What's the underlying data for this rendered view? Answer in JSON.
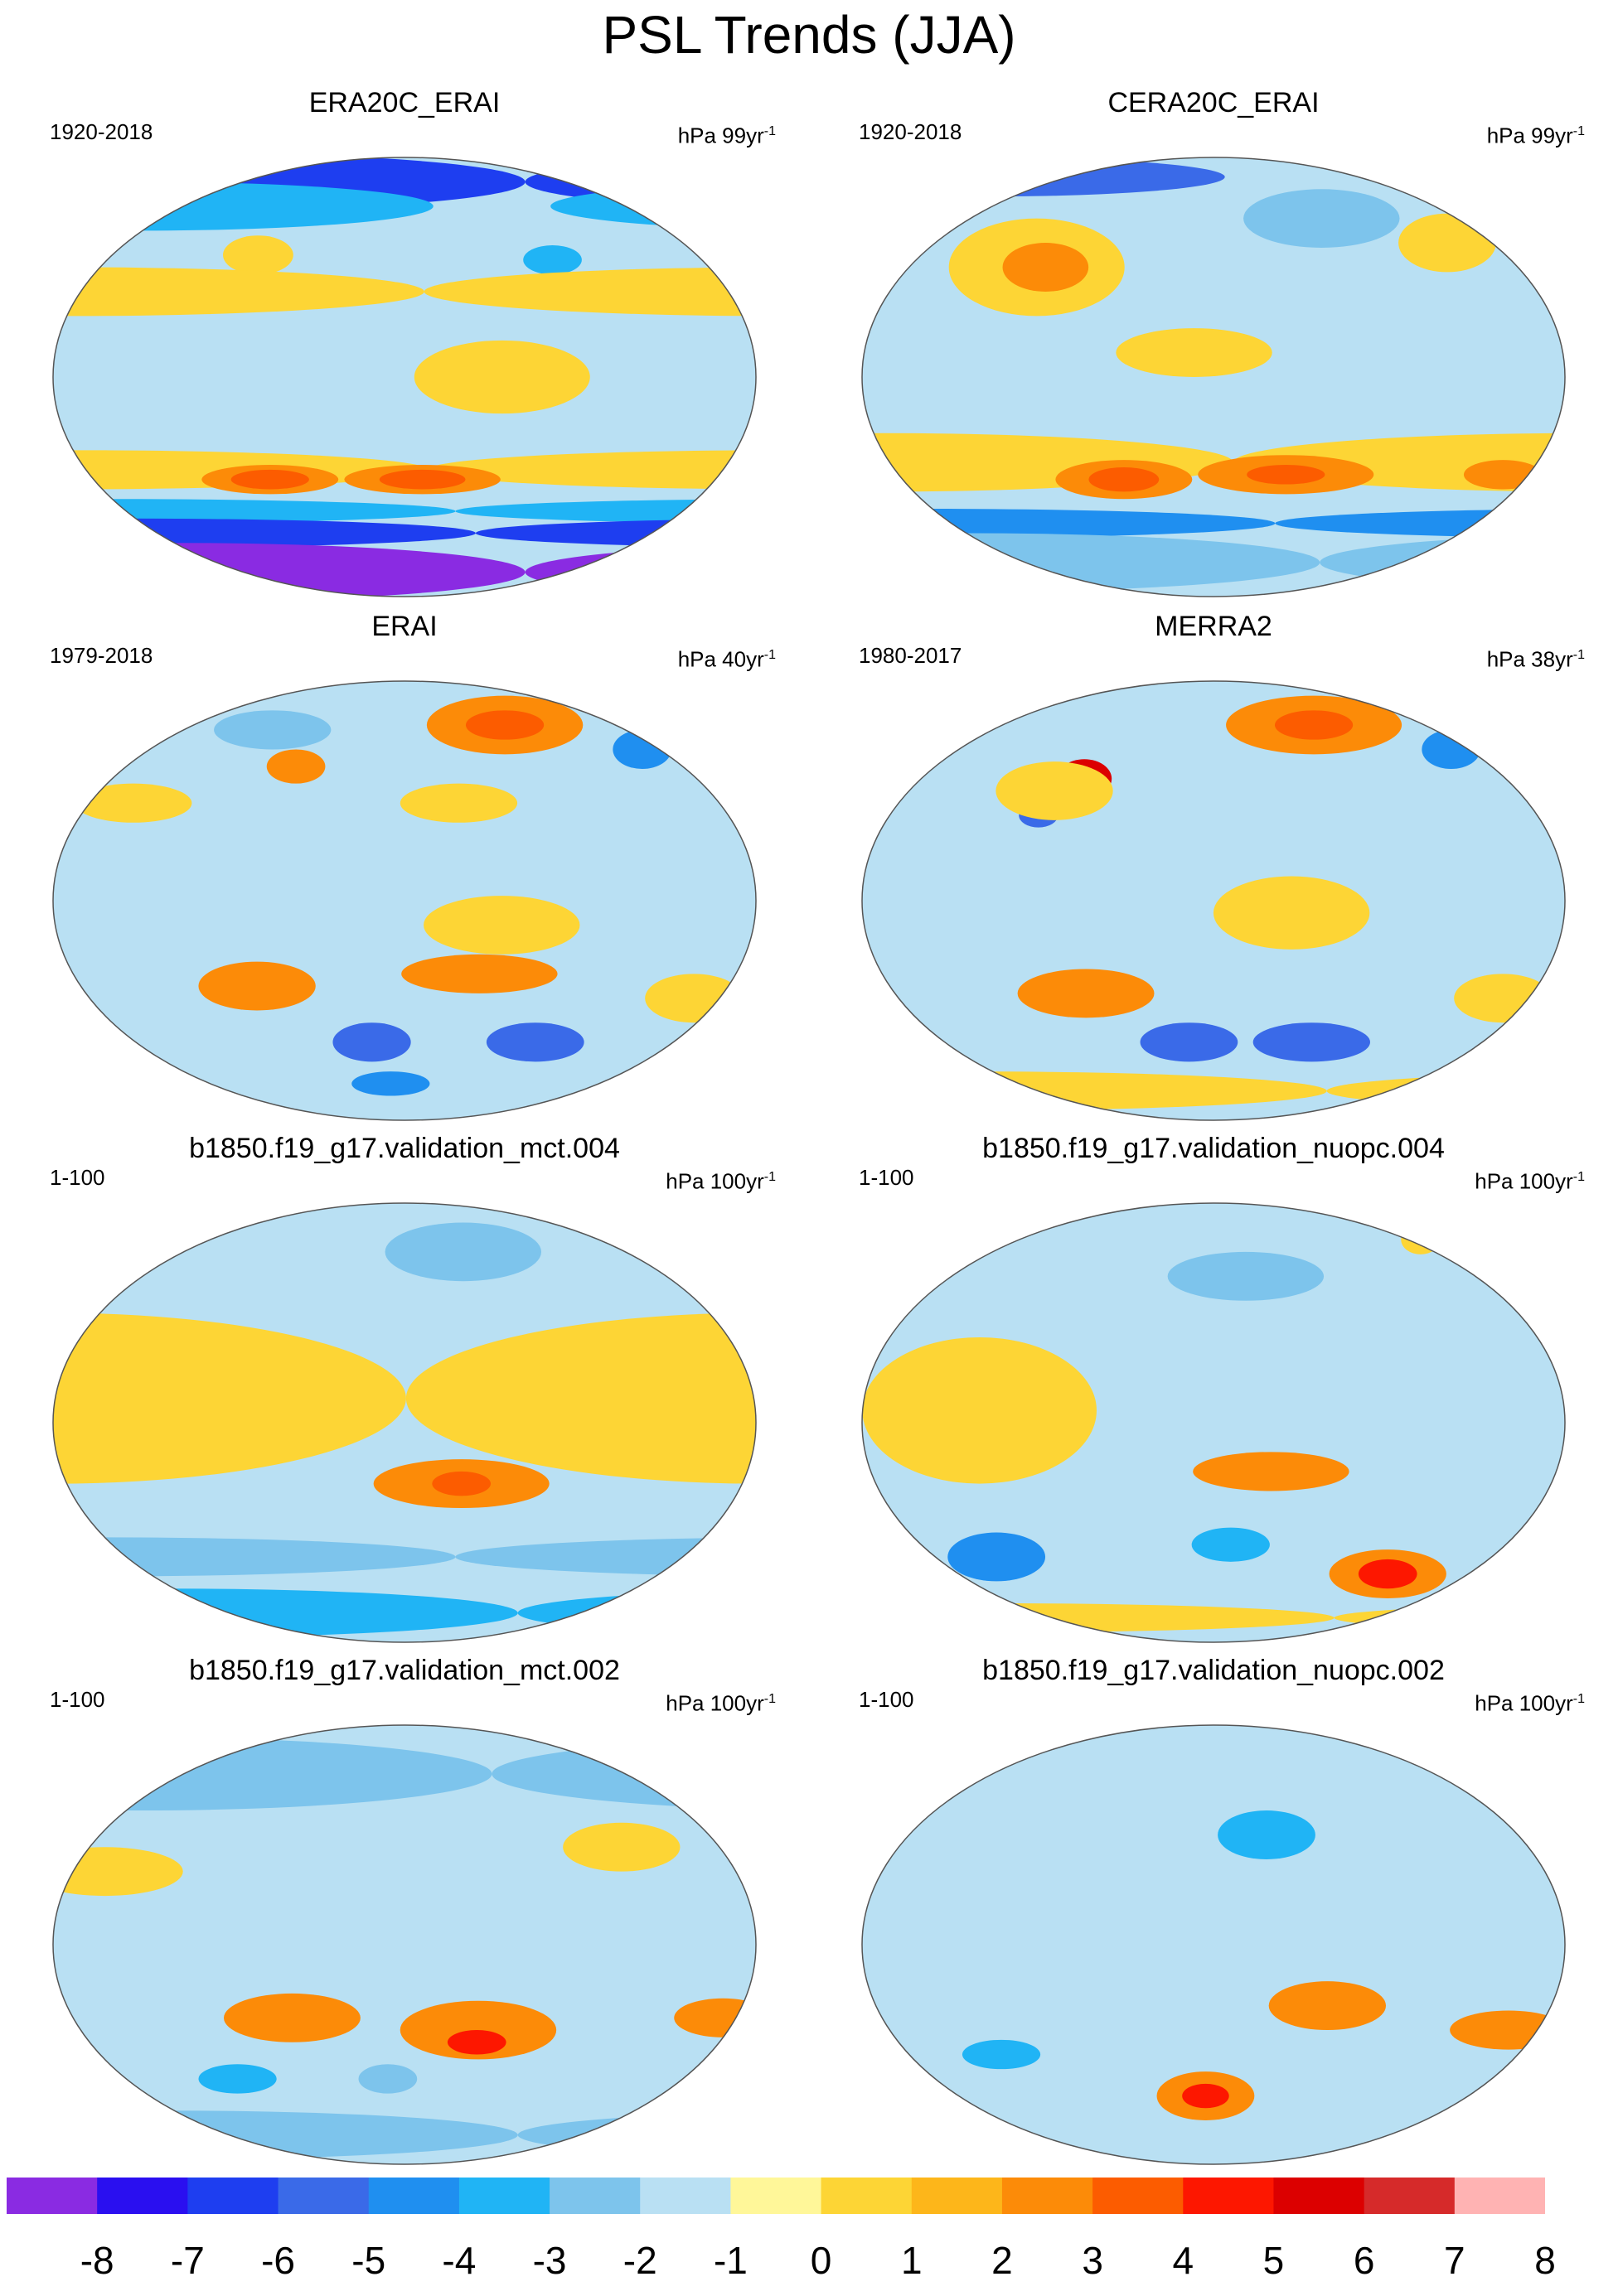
{
  "title": "PSL Trends (JJA)",
  "panels": [
    {
      "title": "ERA20C_ERAI",
      "period": "1920-2018",
      "units_base": "hPa 99yr",
      "units_exp": "-1",
      "chart_data": {
        "type": "heatmap",
        "projection": "Robinson",
        "blobs": [
          {
            "lon": 0,
            "lat": 80,
            "rx": 180,
            "ry": 12,
            "v": -6
          },
          {
            "lon": 0,
            "lat": 70,
            "rx": 150,
            "ry": 10,
            "v": -3
          },
          {
            "lon": -95,
            "lat": 48,
            "rx": 15,
            "ry": 6,
            "v": -3
          },
          {
            "lon": 95,
            "lat": 50,
            "rx": 18,
            "ry": 8,
            "v": 1
          },
          {
            "lon": 0,
            "lat": 35,
            "rx": 180,
            "ry": 10,
            "v": 1
          },
          {
            "lon": -130,
            "lat": 0,
            "rx": 45,
            "ry": 15,
            "v": 1
          },
          {
            "lon": 0,
            "lat": -38,
            "rx": 180,
            "ry": 8,
            "v": 1
          },
          {
            "lon": 105,
            "lat": -42,
            "rx": 35,
            "ry": 6,
            "v": 3
          },
          {
            "lon": 105,
            "lat": -42,
            "rx": 20,
            "ry": 4,
            "v": 4
          },
          {
            "lon": -170,
            "lat": -42,
            "rx": 40,
            "ry": 6,
            "v": 3
          },
          {
            "lon": -170,
            "lat": -42,
            "rx": 22,
            "ry": 4,
            "v": 4
          },
          {
            "lon": 0,
            "lat": -55,
            "rx": 180,
            "ry": 5,
            "v": -3
          },
          {
            "lon": 0,
            "lat": -64,
            "rx": 180,
            "ry": 6,
            "v": -6
          },
          {
            "lon": 0,
            "lat": -80,
            "rx": 180,
            "ry": 12,
            "v": -8
          }
        ]
      }
    },
    {
      "title": "CERA20C_ERAI",
      "period": "1920-2018",
      "units_base": "hPa 99yr",
      "units_exp": "-1",
      "chart_data": {
        "type": "heatmap",
        "projection": "Robinson",
        "blobs": [
          {
            "lon": 0,
            "lat": 82,
            "rx": 120,
            "ry": 8,
            "v": -5
          },
          {
            "lon": -110,
            "lat": 65,
            "rx": 40,
            "ry": 12,
            "v": -2
          },
          {
            "lon": 80,
            "lat": 45,
            "rx": 45,
            "ry": 20,
            "v": 1
          },
          {
            "lon": 85,
            "lat": 45,
            "rx": 22,
            "ry": 10,
            "v": 3
          },
          {
            "lon": -40,
            "lat": 55,
            "rx": 25,
            "ry": 12,
            "v": 1
          },
          {
            "lon": 170,
            "lat": 10,
            "rx": 40,
            "ry": 10,
            "v": 1
          },
          {
            "lon": 0,
            "lat": -35,
            "rx": 180,
            "ry": 12,
            "v": 1
          },
          {
            "lon": 130,
            "lat": -42,
            "rx": 35,
            "ry": 8,
            "v": 3
          },
          {
            "lon": 130,
            "lat": -42,
            "rx": 18,
            "ry": 5,
            "v": 4
          },
          {
            "lon": -140,
            "lat": -40,
            "rx": 45,
            "ry": 8,
            "v": 3
          },
          {
            "lon": -140,
            "lat": -40,
            "rx": 20,
            "ry": 4,
            "v": 4
          },
          {
            "lon": -20,
            "lat": -40,
            "rx": 20,
            "ry": 6,
            "v": 3
          },
          {
            "lon": 0,
            "lat": -60,
            "rx": 180,
            "ry": 6,
            "v": -4
          },
          {
            "lon": 0,
            "lat": -76,
            "rx": 180,
            "ry": 12,
            "v": -2
          }
        ]
      }
    },
    {
      "title": "ERAI",
      "period": "1979-2018",
      "units_base": "hPa 40yr",
      "units_exp": "-1",
      "chart_data": {
        "type": "heatmap",
        "projection": "Robinson",
        "blobs": [
          {
            "lon": -110,
            "lat": 72,
            "rx": 40,
            "ry": 12,
            "v": 3
          },
          {
            "lon": -110,
            "lat": 72,
            "rx": 20,
            "ry": 6,
            "v": 4
          },
          {
            "lon": -30,
            "lat": 62,
            "rx": 15,
            "ry": 8,
            "v": -4
          },
          {
            "lon": 90,
            "lat": 70,
            "rx": 30,
            "ry": 8,
            "v": -2
          },
          {
            "lon": 115,
            "lat": 55,
            "rx": 15,
            "ry": 7,
            "v": 3
          },
          {
            "lon": 30,
            "lat": 40,
            "rx": 30,
            "ry": 8,
            "v": 1
          },
          {
            "lon": -150,
            "lat": 40,
            "rx": 30,
            "ry": 8,
            "v": 1
          },
          {
            "lon": -130,
            "lat": -10,
            "rx": 40,
            "ry": 12,
            "v": 1
          },
          {
            "lon": -140,
            "lat": -30,
            "rx": 40,
            "ry": 8,
            "v": 3
          },
          {
            "lon": 100,
            "lat": -35,
            "rx": 30,
            "ry": 10,
            "v": 3
          },
          {
            "lon": 160,
            "lat": -58,
            "rx": 20,
            "ry": 8,
            "v": -5
          },
          {
            "lon": -100,
            "lat": -58,
            "rx": 25,
            "ry": 8,
            "v": -5
          },
          {
            "lon": -20,
            "lat": -40,
            "rx": 25,
            "ry": 10,
            "v": 1
          },
          {
            "lon": 170,
            "lat": -75,
            "rx": 20,
            "ry": 5,
            "v": -4
          }
        ]
      }
    },
    {
      "title": "MERRA2",
      "period": "1980-2017",
      "units_base": "hPa 38yr",
      "units_exp": "-1",
      "chart_data": {
        "type": "heatmap",
        "projection": "Robinson",
        "blobs": [
          {
            "lon": -110,
            "lat": 72,
            "rx": 45,
            "ry": 12,
            "v": 3
          },
          {
            "lon": -110,
            "lat": 72,
            "rx": 20,
            "ry": 6,
            "v": 4
          },
          {
            "lon": -30,
            "lat": 62,
            "rx": 15,
            "ry": 8,
            "v": -4
          },
          {
            "lon": 105,
            "lat": 50,
            "rx": 14,
            "ry": 8,
            "v": 6
          },
          {
            "lon": 85,
            "lat": 35,
            "rx": 10,
            "ry": 5,
            "v": -5
          },
          {
            "lon": 90,
            "lat": 45,
            "rx": 30,
            "ry": 12,
            "v": 1
          },
          {
            "lon": -140,
            "lat": -5,
            "rx": 40,
            "ry": 15,
            "v": 1
          },
          {
            "lon": 110,
            "lat": -38,
            "rx": 35,
            "ry": 10,
            "v": 3
          },
          {
            "lon": 165,
            "lat": -58,
            "rx": 25,
            "ry": 8,
            "v": -5
          },
          {
            "lon": -120,
            "lat": -58,
            "rx": 30,
            "ry": 8,
            "v": -5
          },
          {
            "lon": -20,
            "lat": -40,
            "rx": 25,
            "ry": 10,
            "v": 1
          },
          {
            "lon": 0,
            "lat": -78,
            "rx": 180,
            "ry": 8,
            "v": 1
          }
        ]
      }
    },
    {
      "title": "b1850.f19_g17.validation_mct.004",
      "period": "1-100",
      "units_base": "hPa 100yr",
      "units_exp": "-1",
      "chart_data": {
        "type": "heatmap",
        "projection": "Robinson",
        "blobs": [
          {
            "lon": -140,
            "lat": 70,
            "rx": 40,
            "ry": 12,
            "v": -2
          },
          {
            "lon": 0,
            "lat": 10,
            "rx": 180,
            "ry": 35,
            "v": 1
          },
          {
            "lon": -150,
            "lat": -25,
            "rx": 45,
            "ry": 10,
            "v": 3
          },
          {
            "lon": -150,
            "lat": -25,
            "rx": 15,
            "ry": 5,
            "v": 4
          },
          {
            "lon": 0,
            "lat": -55,
            "rx": 180,
            "ry": 8,
            "v": -2
          },
          {
            "lon": 0,
            "lat": -78,
            "rx": 180,
            "ry": 10,
            "v": -3
          }
        ]
      }
    },
    {
      "title": "b1850.f19_g17.validation_nuopc.004",
      "period": "1-100",
      "units_base": "hPa 100yr",
      "units_exp": "-1",
      "chart_data": {
        "type": "heatmap",
        "projection": "Robinson",
        "blobs": [
          {
            "lon": -160,
            "lat": 60,
            "rx": 40,
            "ry": 10,
            "v": -2
          },
          {
            "lon": -30,
            "lat": 75,
            "rx": 10,
            "ry": 6,
            "v": 1
          },
          {
            "lon": 60,
            "lat": 5,
            "rx": 60,
            "ry": 30,
            "v": 1
          },
          {
            "lon": -150,
            "lat": -20,
            "rx": 40,
            "ry": 8,
            "v": 3
          },
          {
            "lon": 50,
            "lat": -55,
            "rx": 25,
            "ry": 10,
            "v": -4
          },
          {
            "lon": -170,
            "lat": -50,
            "rx": 20,
            "ry": 7,
            "v": -3
          },
          {
            "lon": -70,
            "lat": -62,
            "rx": 30,
            "ry": 10,
            "v": 3
          },
          {
            "lon": -70,
            "lat": -62,
            "rx": 15,
            "ry": 6,
            "v": 5
          },
          {
            "lon": 0,
            "lat": -80,
            "rx": 180,
            "ry": 6,
            "v": 1
          }
        ]
      }
    },
    {
      "title": "b1850.f19_g17.validation_mct.002",
      "period": "1-100",
      "units_base": "hPa 100yr",
      "units_exp": "-1",
      "chart_data": {
        "type": "heatmap",
        "projection": "Robinson",
        "blobs": [
          {
            "lon": 0,
            "lat": 70,
            "rx": 180,
            "ry": 15,
            "v": -2
          },
          {
            "lon": -60,
            "lat": 40,
            "rx": 30,
            "ry": 10,
            "v": 1
          },
          {
            "lon": 20,
            "lat": 30,
            "rx": 40,
            "ry": 10,
            "v": 1
          },
          {
            "lon": 120,
            "lat": -30,
            "rx": 35,
            "ry": 10,
            "v": 3
          },
          {
            "lon": -140,
            "lat": -35,
            "rx": 40,
            "ry": 12,
            "v": 3
          },
          {
            "lon": -140,
            "lat": -40,
            "rx": 15,
            "ry": 5,
            "v": 5
          },
          {
            "lon": -10,
            "lat": -30,
            "rx": 25,
            "ry": 8,
            "v": 3
          },
          {
            "lon": 170,
            "lat": -55,
            "rx": 15,
            "ry": 6,
            "v": -2
          },
          {
            "lon": 80,
            "lat": -55,
            "rx": 20,
            "ry": 6,
            "v": -3
          },
          {
            "lon": 0,
            "lat": -78,
            "rx": 180,
            "ry": 10,
            "v": -2
          }
        ]
      }
    },
    {
      "title": "b1850.f19_g17.validation_nuopc.002",
      "period": "1-100",
      "units_base": "hPa 100yr",
      "units_exp": "-1",
      "chart_data": {
        "type": "heatmap",
        "projection": "Robinson",
        "blobs": [
          {
            "lon": -150,
            "lat": 45,
            "rx": 25,
            "ry": 10,
            "v": -3
          },
          {
            "lon": 0,
            "lat": 65,
            "rx": 180,
            "ry": 15,
            "v": -1
          },
          {
            "lon": -120,
            "lat": -25,
            "rx": 30,
            "ry": 10,
            "v": 3
          },
          {
            "lon": -20,
            "lat": -35,
            "rx": 30,
            "ry": 8,
            "v": 3
          },
          {
            "lon": 175,
            "lat": -62,
            "rx": 25,
            "ry": 10,
            "v": 3
          },
          {
            "lon": 175,
            "lat": -62,
            "rx": 12,
            "ry": 5,
            "v": 5
          },
          {
            "lon": 60,
            "lat": -45,
            "rx": 20,
            "ry": 6,
            "v": -3
          },
          {
            "lon": 0,
            "lat": -80,
            "rx": 180,
            "ry": 8,
            "v": -1
          }
        ]
      }
    }
  ],
  "colorbar": {
    "labels": [
      "-8",
      "-7",
      "-6",
      "-5",
      "-4",
      "-3",
      "-2",
      "-1",
      "0",
      "1",
      "2",
      "3",
      "4",
      "5",
      "6",
      "7",
      "8"
    ],
    "colors": [
      "#8a2be2",
      "#2a0ff0",
      "#1e3ef0",
      "#3a6ae8",
      "#1f8ff0",
      "#20b4f5",
      "#7dc4ec",
      "#b9e0f3",
      "#fff799",
      "#fdd535",
      "#fdb61a",
      "#fc8b08",
      "#fc5c00",
      "#fd1700",
      "#dc0000",
      "#d62a2a",
      "#ffb3b3"
    ]
  }
}
